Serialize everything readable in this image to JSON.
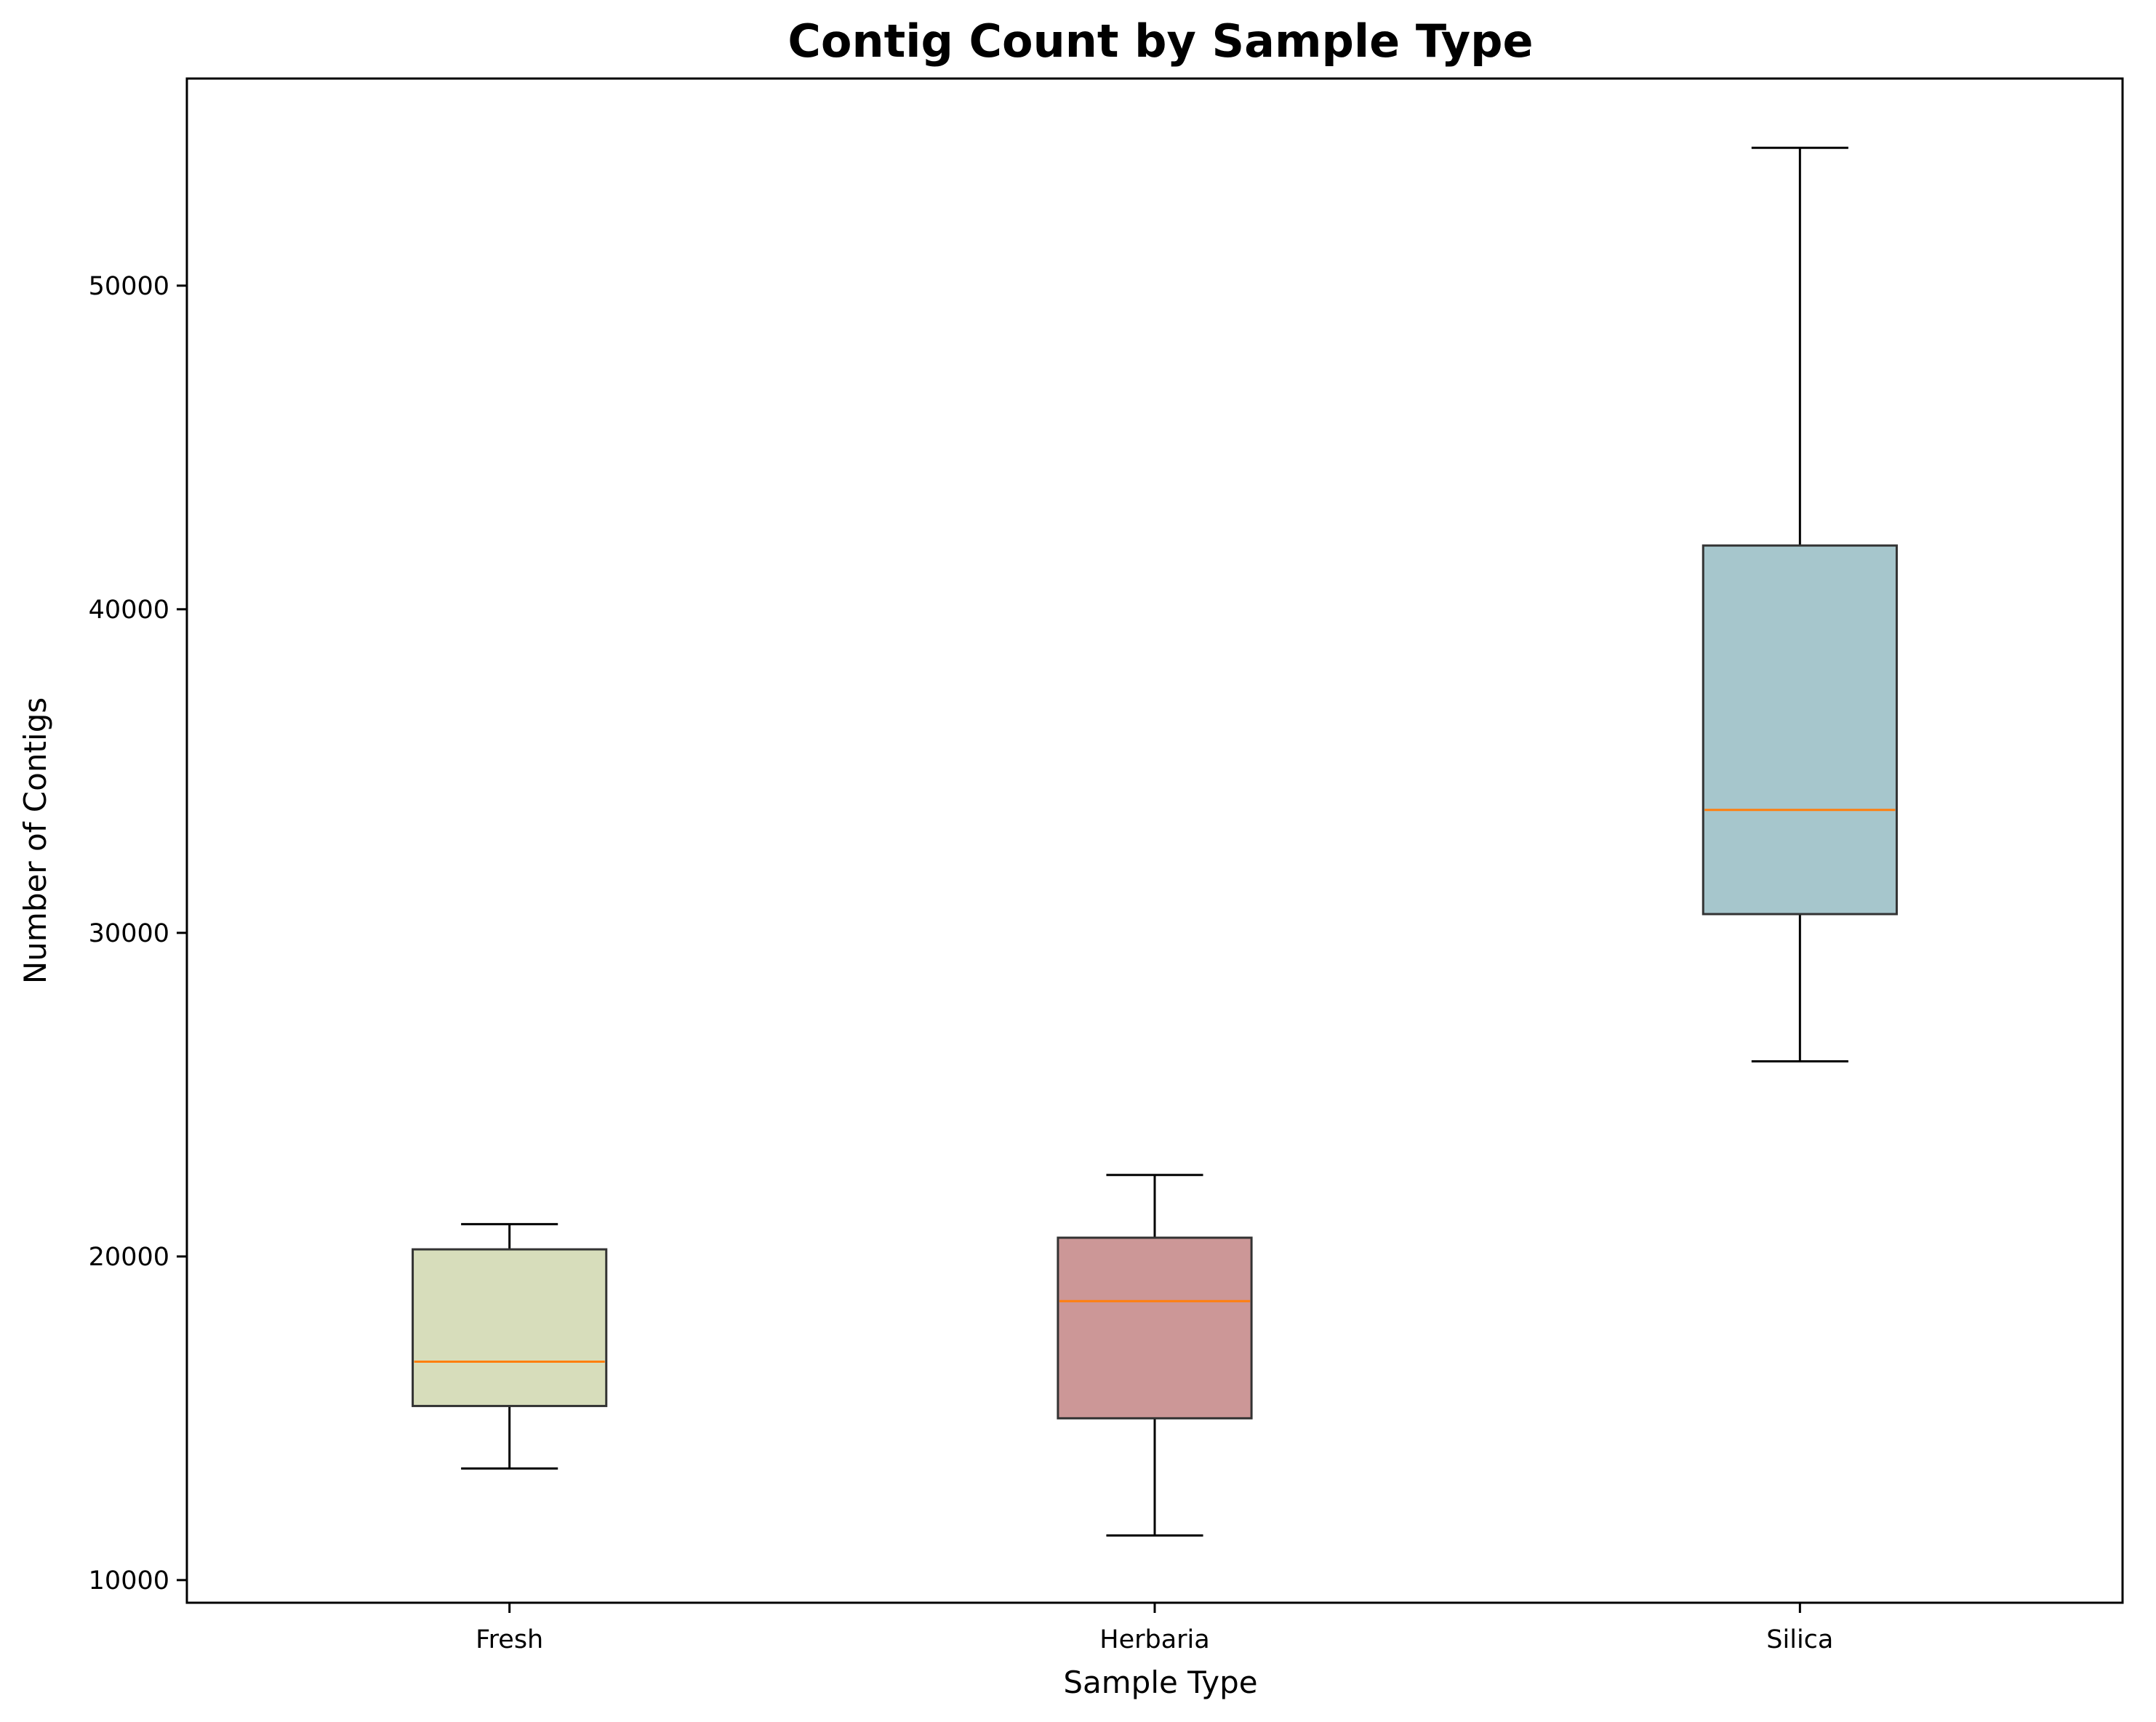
{
  "chart_data": {
    "type": "box",
    "title": "Contig Count by Sample Type",
    "xlabel": "Sample Type",
    "ylabel": "Number of Contigs",
    "ylim": [
      9300,
      56400
    ],
    "yticks": [
      10000,
      20000,
      30000,
      40000,
      50000
    ],
    "grid": false,
    "categories": [
      "Fresh",
      "Herbaria",
      "Silica"
    ],
    "boxes": [
      {
        "name": "Fresh",
        "whisker_low": 13450,
        "q1": 15380,
        "median": 16750,
        "q3": 20220,
        "whisker_high": 21000,
        "color": "#d7ddbb"
      },
      {
        "name": "Herbaria",
        "whisker_low": 11380,
        "q1": 15000,
        "median": 18620,
        "q3": 20580,
        "whisker_high": 22520,
        "color": "#cc9797"
      },
      {
        "name": "Silica",
        "whisker_low": 26030,
        "q1": 30580,
        "median": 33800,
        "q3": 41970,
        "whisker_high": 54260,
        "color": "#a6c6cc"
      }
    ],
    "median_color": "#ff7f0e"
  }
}
